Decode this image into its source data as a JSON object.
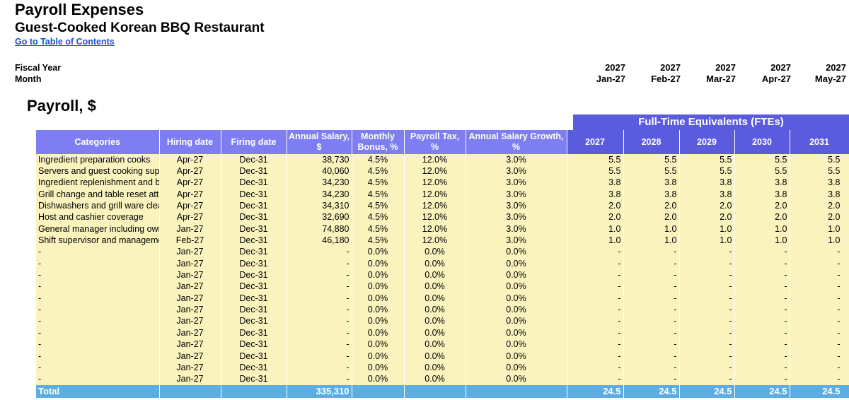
{
  "header": {
    "title": "Payroll Expenses",
    "subtitle": "Guest-Cooked Korean BBQ Restaurant",
    "toc_link": "Go to Table of Contents",
    "fiscal_year_label": "Fiscal Year",
    "month_label": "Month",
    "fiscal_years": [
      "2027",
      "2027",
      "2027",
      "2027",
      "2027"
    ],
    "months": [
      "Jan-27",
      "Feb-27",
      "Mar-27",
      "Apr-27",
      "May-27"
    ]
  },
  "section_title": "Payroll, $",
  "fte_banner": "Full-Time Equivalents (FTEs)",
  "columns": {
    "categories": "Categories",
    "hiring_date": "Hiring date",
    "firing_date": "Firing date",
    "annual_salary": "Annual Salary, $",
    "monthly_bonus": "Monthly Bonus, %",
    "payroll_tax": "Payroll Tax, %",
    "salary_growth": "Annual Salary Growth, %",
    "fte_years": [
      "2027",
      "2028",
      "2029",
      "2030",
      "2031"
    ]
  },
  "rows": [
    {
      "category": "Ingredient preparation cooks",
      "hire": "Apr-27",
      "fire": "Dec-31",
      "salary": "38,730",
      "bonus": "4.5%",
      "tax": "12.0%",
      "growth": "3.0%",
      "fte": [
        "5.5",
        "5.5",
        "5.5",
        "5.5",
        "5.5"
      ]
    },
    {
      "category": "Servers and guest cooking supe",
      "hire": "Apr-27",
      "fire": "Dec-31",
      "salary": "40,060",
      "bonus": "4.5%",
      "tax": "12.0%",
      "growth": "3.0%",
      "fte": [
        "5.5",
        "5.5",
        "5.5",
        "5.5",
        "5.5"
      ]
    },
    {
      "category": "Ingredient replenishment and b",
      "hire": "Apr-27",
      "fire": "Dec-31",
      "salary": "34,230",
      "bonus": "4.5%",
      "tax": "12.0%",
      "growth": "3.0%",
      "fte": [
        "3.8",
        "3.8",
        "3.8",
        "3.8",
        "3.8"
      ]
    },
    {
      "category": "Grill change and table reset atte",
      "hire": "Apr-27",
      "fire": "Dec-31",
      "salary": "34,230",
      "bonus": "4.5%",
      "tax": "12.0%",
      "growth": "3.0%",
      "fte": [
        "3.8",
        "3.8",
        "3.8",
        "3.8",
        "3.8"
      ]
    },
    {
      "category": "Dishwashers and grill ware clea",
      "hire": "Apr-27",
      "fire": "Dec-31",
      "salary": "34,310",
      "bonus": "4.5%",
      "tax": "12.0%",
      "growth": "3.0%",
      "fte": [
        "2.0",
        "2.0",
        "2.0",
        "2.0",
        "2.0"
      ]
    },
    {
      "category": "Host and cashier coverage",
      "hire": "Apr-27",
      "fire": "Dec-31",
      "salary": "32,690",
      "bonus": "4.5%",
      "tax": "12.0%",
      "growth": "3.0%",
      "fte": [
        "2.0",
        "2.0",
        "2.0",
        "2.0",
        "2.0"
      ]
    },
    {
      "category": "General manager including own",
      "hire": "Jan-27",
      "fire": "Dec-31",
      "salary": "74,880",
      "bonus": "4.5%",
      "tax": "12.0%",
      "growth": "3.0%",
      "fte": [
        "1.0",
        "1.0",
        "1.0",
        "1.0",
        "1.0"
      ]
    },
    {
      "category": "Shift supervisor and manageme",
      "hire": "Feb-27",
      "fire": "Dec-31",
      "salary": "46,180",
      "bonus": "4.5%",
      "tax": "12.0%",
      "growth": "3.0%",
      "fte": [
        "1.0",
        "1.0",
        "1.0",
        "1.0",
        "1.0"
      ]
    },
    {
      "category": "-",
      "hire": "Jan-27",
      "fire": "Dec-31",
      "salary": "-",
      "bonus": "0.0%",
      "tax": "0.0%",
      "growth": "0.0%",
      "fte": [
        "-",
        "-",
        "-",
        "-",
        "-"
      ]
    },
    {
      "category": "-",
      "hire": "Jan-27",
      "fire": "Dec-31",
      "salary": "-",
      "bonus": "0.0%",
      "tax": "0.0%",
      "growth": "0.0%",
      "fte": [
        "-",
        "-",
        "-",
        "-",
        "-"
      ]
    },
    {
      "category": "-",
      "hire": "Jan-27",
      "fire": "Dec-31",
      "salary": "-",
      "bonus": "0.0%",
      "tax": "0.0%",
      "growth": "0.0%",
      "fte": [
        "-",
        "-",
        "-",
        "-",
        "-"
      ]
    },
    {
      "category": "-",
      "hire": "Jan-27",
      "fire": "Dec-31",
      "salary": "-",
      "bonus": "0.0%",
      "tax": "0.0%",
      "growth": "0.0%",
      "fte": [
        "-",
        "-",
        "-",
        "-",
        "-"
      ]
    },
    {
      "category": "-",
      "hire": "Jan-27",
      "fire": "Dec-31",
      "salary": "-",
      "bonus": "0.0%",
      "tax": "0.0%",
      "growth": "0.0%",
      "fte": [
        "-",
        "-",
        "-",
        "-",
        "-"
      ]
    },
    {
      "category": "-",
      "hire": "Jan-27",
      "fire": "Dec-31",
      "salary": "-",
      "bonus": "0.0%",
      "tax": "0.0%",
      "growth": "0.0%",
      "fte": [
        "-",
        "-",
        "-",
        "-",
        "-"
      ]
    },
    {
      "category": "-",
      "hire": "Jan-27",
      "fire": "Dec-31",
      "salary": "-",
      "bonus": "0.0%",
      "tax": "0.0%",
      "growth": "0.0%",
      "fte": [
        "-",
        "-",
        "-",
        "-",
        "-"
      ]
    },
    {
      "category": "-",
      "hire": "Jan-27",
      "fire": "Dec-31",
      "salary": "-",
      "bonus": "0.0%",
      "tax": "0.0%",
      "growth": "0.0%",
      "fte": [
        "-",
        "-",
        "-",
        "-",
        "-"
      ]
    },
    {
      "category": "-",
      "hire": "Jan-27",
      "fire": "Dec-31",
      "salary": "-",
      "bonus": "0.0%",
      "tax": "0.0%",
      "growth": "0.0%",
      "fte": [
        "-",
        "-",
        "-",
        "-",
        "-"
      ]
    },
    {
      "category": "-",
      "hire": "Jan-27",
      "fire": "Dec-31",
      "salary": "-",
      "bonus": "0.0%",
      "tax": "0.0%",
      "growth": "0.0%",
      "fte": [
        "-",
        "-",
        "-",
        "-",
        "-"
      ]
    },
    {
      "category": "-",
      "hire": "Jan-27",
      "fire": "Dec-31",
      "salary": "-",
      "bonus": "0.0%",
      "tax": "0.0%",
      "growth": "0.0%",
      "fte": [
        "-",
        "-",
        "-",
        "-",
        "-"
      ]
    },
    {
      "category": "-",
      "hire": "Jan-27",
      "fire": "Dec-31",
      "salary": "-",
      "bonus": "0.0%",
      "tax": "0.0%",
      "growth": "0.0%",
      "fte": [
        "-",
        "-",
        "-",
        "-",
        "-"
      ]
    }
  ],
  "total": {
    "label": "Total",
    "salary": "335,310",
    "fte": [
      "24.5",
      "24.5",
      "24.5",
      "24.5",
      "24.5"
    ]
  },
  "colors": {
    "header_purple": "#7e7ef2",
    "banner_purple": "#5b5bde",
    "cell_yellow": "#fbf3be",
    "total_blue": "#5dade2",
    "link_blue": "#1155cc"
  }
}
